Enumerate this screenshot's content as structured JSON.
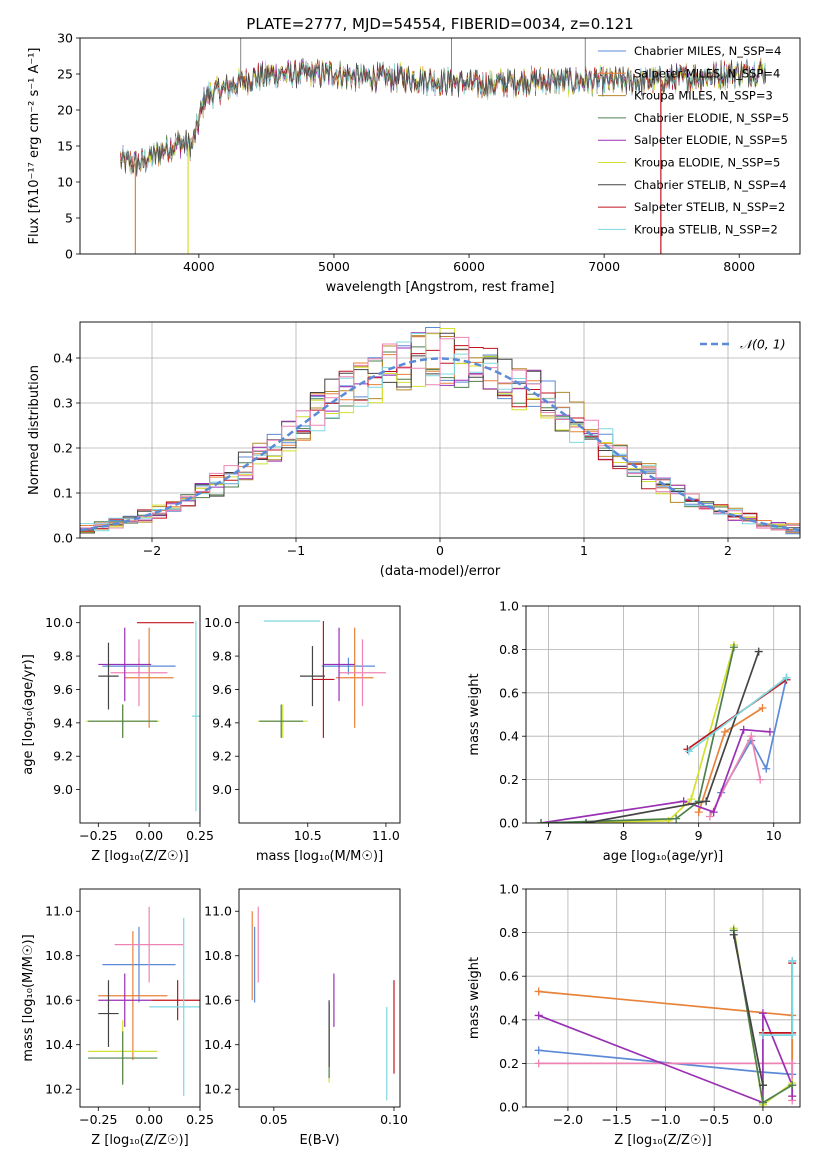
{
  "figure": {
    "title": "PLATE=2777, MJD=54554, FIBERID=0034, z=0.121"
  },
  "chart_data": [
    {
      "id": "spectrum",
      "type": "line",
      "xlabel": "wavelength [Angstrom, rest frame]",
      "ylabel": "Flux [fλ10⁻¹⁷ erg cm⁻² s⁻¹ A⁻¹]",
      "xlim": [
        3120,
        8450
      ],
      "ylim": [
        0,
        30
      ],
      "xticks": [
        4000,
        5000,
        6000,
        7000,
        8000
      ],
      "yticks": [
        0,
        5,
        10,
        15,
        20,
        25,
        30
      ],
      "continuum": {
        "x": [
          3420,
          3550,
          3700,
          3850,
          3950,
          4050,
          4200,
          4400,
          4600,
          4800,
          5000,
          5200,
          5500,
          5800,
          6100,
          6400,
          6700,
          7000,
          7300,
          7600,
          7900,
          8200
        ],
        "y": [
          13,
          12.5,
          14,
          15.5,
          15,
          22,
          23,
          24.5,
          25,
          25,
          25,
          24.5,
          24.5,
          24,
          23.5,
          24,
          24,
          24,
          24,
          24.5,
          25,
          25.5
        ]
      },
      "series": [
        {
          "name": "Chabrier MILES, N_SSP=4",
          "color": "#5b8ad6"
        },
        {
          "name": "Salpeter MILES, N_SSP=4",
          "color": "#e8823a"
        },
        {
          "name": "Kroupa MILES, N_SSP=3",
          "color": "#b5892a"
        },
        {
          "name": "Chabrier ELODIE, N_SSP=5",
          "color": "#4f7f4f"
        },
        {
          "name": "Salpeter ELODIE, N_SSP=5",
          "color": "#9a2fb5"
        },
        {
          "name": "Kroupa ELODIE, N_SSP=5",
          "color": "#d4e030"
        },
        {
          "name": "Chabrier STELIB, N_SSP=4",
          "color": "#444444"
        },
        {
          "name": "Salpeter STELIB, N_SSP=2",
          "color": "#c0141e"
        },
        {
          "name": "Kroupa STELIB, N_SSP=2",
          "color": "#7fd8e0"
        }
      ]
    },
    {
      "id": "residuals",
      "type": "line",
      "xlabel": "(data-model)/error",
      "ylabel": "Normed distribution",
      "xlim": [
        -2.5,
        2.5
      ],
      "ylim": [
        0,
        0.48
      ],
      "xticks": [
        -2,
        -1,
        0,
        1,
        2
      ],
      "yticks": [
        0.0,
        0.1,
        0.2,
        0.3,
        0.4
      ],
      "grid": true,
      "legend": {
        "label": "𝒩(0, 1)",
        "position": "top-right",
        "color": "#5b8ad6"
      }
    },
    {
      "id": "age-vs-Z",
      "type": "scatter",
      "xlabel": "Z [log₁₀(Z/Z☉)]",
      "ylabel": "age  [log₁₀(age/yr)]",
      "xlim": [
        -0.34,
        0.25
      ],
      "ylim": [
        8.8,
        10.1
      ],
      "xticks": [
        -0.25,
        0.0,
        0.25
      ],
      "yticks": [
        9.0,
        9.2,
        9.4,
        9.6,
        9.8,
        10.0
      ],
      "points": [
        {
          "color": "#5b8ad6",
          "x": -0.05,
          "xerr": 0.18,
          "y": 9.74,
          "yerr": 0.05
        },
        {
          "color": "#e8823a",
          "x": 0.0,
          "xerr": 0.12,
          "y": 9.67,
          "yerr": 0.3
        },
        {
          "color": "#ee84b4",
          "x": -0.05,
          "xerr": 0.14,
          "y": 9.7,
          "yerr": 0.2
        },
        {
          "color": "#9a2fb5",
          "x": -0.12,
          "xerr": 0.13,
          "y": 9.75,
          "yerr": 0.22
        },
        {
          "color": "#d4e030",
          "x": -0.13,
          "xerr": 0.18,
          "y": 9.41,
          "yerr": 0.1
        },
        {
          "color": "#4f7f4f",
          "x": -0.13,
          "xerr": 0.17,
          "y": 9.41,
          "yerr": 0.1
        },
        {
          "color": "#444444",
          "x": -0.2,
          "xerr": 0.05,
          "y": 9.68,
          "yerr": 0.2
        },
        {
          "color": "#c0141e",
          "x": 0.08,
          "xerr": 0.14,
          "y": 10.0,
          "yerr": 0.0
        },
        {
          "color": "#7fd8e0",
          "x": 0.23,
          "xerr": 0.02,
          "y": 9.44,
          "yerr": 0.57
        }
      ]
    },
    {
      "id": "age-vs-mass",
      "type": "scatter",
      "xlabel": "mass [log₁₀(M/M☉)]",
      "ylabel": "",
      "xlim": [
        10.06,
        11.09
      ],
      "ylim": [
        8.8,
        10.1
      ],
      "xticks": [
        10.5,
        11.0
      ],
      "yticks": [
        9.0,
        9.2,
        9.4,
        9.6,
        9.8,
        10.0
      ],
      "points": [
        {
          "color": "#5b8ad6",
          "x": 10.76,
          "xerr": 0.17,
          "y": 9.74,
          "yerr": 0.05
        },
        {
          "color": "#e8823a",
          "x": 10.8,
          "xerr": 0.12,
          "y": 9.67,
          "yerr": 0.3
        },
        {
          "color": "#ee84b4",
          "x": 10.85,
          "xerr": 0.15,
          "y": 9.7,
          "yerr": 0.2
        },
        {
          "color": "#9a2fb5",
          "x": 10.7,
          "xerr": 0.1,
          "y": 9.75,
          "yerr": 0.22
        },
        {
          "color": "#d4e030",
          "x": 10.34,
          "xerr": 0.16,
          "y": 9.41,
          "yerr": 0.1
        },
        {
          "color": "#4f7f4f",
          "x": 10.33,
          "xerr": 0.14,
          "y": 9.41,
          "yerr": 0.1
        },
        {
          "color": "#444444",
          "x": 10.53,
          "xerr": 0.08,
          "y": 9.68,
          "yerr": 0.18
        },
        {
          "color": "#c0141e",
          "x": 10.6,
          "xerr": 0.07,
          "y": 9.66,
          "yerr": 0.35
        },
        {
          "color": "#7fd8e0",
          "x": 10.4,
          "xerr": 0.18,
          "y": 10.01,
          "yerr": 0.0
        }
      ]
    },
    {
      "id": "weight-vs-age",
      "type": "line",
      "xlabel": "age  [log₁₀(age/yr)]",
      "ylabel": "mass weight",
      "xlim": [
        6.7,
        10.35
      ],
      "ylim": [
        0,
        1.0
      ],
      "xticks": [
        7,
        8,
        9,
        10
      ],
      "yticks": [
        0.0,
        0.2,
        0.4,
        0.6,
        0.8,
        1.0
      ],
      "grid": true,
      "series": [
        {
          "color": "#5b8ad6",
          "x": [
            9.3,
            9.7,
            9.9,
            10.17
          ],
          "y": [
            0.14,
            0.38,
            0.25,
            0.67
          ]
        },
        {
          "color": "#e8823a",
          "x": [
            9.0,
            9.35,
            9.85
          ],
          "y": [
            0.05,
            0.42,
            0.53
          ]
        },
        {
          "color": "#ee84b4",
          "x": [
            9.15,
            9.7,
            9.82
          ],
          "y": [
            0.03,
            0.4,
            0.2
          ]
        },
        {
          "color": "#9a2fb5",
          "x": [
            6.9,
            8.8,
            9.2,
            9.6,
            9.95
          ],
          "y": [
            0.0,
            0.1,
            0.05,
            0.43,
            0.42
          ]
        },
        {
          "color": "#d4e030",
          "x": [
            6.9,
            8.6,
            8.9,
            9.47
          ],
          "y": [
            0.0,
            0.01,
            0.11,
            0.82
          ]
        },
        {
          "color": "#4f7f4f",
          "x": [
            6.9,
            8.7,
            9.0,
            9.47
          ],
          "y": [
            0.0,
            0.02,
            0.1,
            0.81
          ]
        },
        {
          "color": "#444444",
          "x": [
            7.5,
            9.1,
            9.8
          ],
          "y": [
            0.0,
            0.1,
            0.79
          ]
        },
        {
          "color": "#c0141e",
          "x": [
            8.85,
            10.17
          ],
          "y": [
            0.34,
            0.66
          ]
        },
        {
          "color": "#7fd8e0",
          "x": [
            8.87,
            10.17
          ],
          "y": [
            0.33,
            0.67
          ]
        }
      ]
    },
    {
      "id": "mass-vs-Z",
      "type": "scatter",
      "xlabel": "Z [log₁₀(Z/Z☉)]",
      "ylabel": "mass [log₁₀(M/M☉)]",
      "xlim": [
        -0.34,
        0.25
      ],
      "ylim": [
        10.12,
        11.1
      ],
      "xticks": [
        -0.25,
        0.0,
        0.25
      ],
      "yticks": [
        10.2,
        10.4,
        10.6,
        10.8,
        11.0
      ],
      "points": [
        {
          "color": "#5b8ad6",
          "x": -0.05,
          "xerr": 0.18,
          "y": 10.76,
          "yerr": 0.17
        },
        {
          "color": "#e8823a",
          "x": -0.08,
          "xerr": 0.17,
          "y": 10.62,
          "yerr": 0.29
        },
        {
          "color": "#ee84b4",
          "x": 0.0,
          "xerr": 0.17,
          "y": 10.85,
          "yerr": 0.17
        },
        {
          "color": "#9a2fb5",
          "x": -0.12,
          "xerr": 0.13,
          "y": 10.6,
          "yerr": 0.12
        },
        {
          "color": "#d4e030",
          "x": -0.13,
          "xerr": 0.17,
          "y": 10.37,
          "yerr": 0.14
        },
        {
          "color": "#4f7f4f",
          "x": -0.13,
          "xerr": 0.17,
          "y": 10.34,
          "yerr": 0.12
        },
        {
          "color": "#444444",
          "x": -0.2,
          "xerr": 0.05,
          "y": 10.54,
          "yerr": 0.15
        },
        {
          "color": "#c0141e",
          "x": 0.14,
          "xerr": 0.13,
          "y": 10.6,
          "yerr": 0.09
        },
        {
          "color": "#7fd8e0",
          "x": 0.17,
          "xerr": 0.17,
          "y": 10.57,
          "yerr": 0.4
        }
      ]
    },
    {
      "id": "mass-vs-ebv",
      "type": "scatter",
      "xlabel": "E(B-V)",
      "ylabel": "",
      "xlim": [
        0.0355,
        0.1025
      ],
      "ylim": [
        10.12,
        11.1
      ],
      "xticks": [
        0.05,
        0.1
      ],
      "yticks": [
        10.2,
        10.4,
        10.6,
        10.8,
        11.0
      ],
      "points": [
        {
          "color": "#5b8ad6",
          "x": 0.042,
          "y": 10.76,
          "yerr": 0.17
        },
        {
          "color": "#e8823a",
          "x": 0.041,
          "y": 10.8,
          "yerr": 0.2
        },
        {
          "color": "#ee84b4",
          "x": 0.0435,
          "y": 10.85,
          "yerr": 0.17
        },
        {
          "color": "#9a2fb5",
          "x": 0.075,
          "y": 10.6,
          "yerr": 0.12
        },
        {
          "color": "#d4e030",
          "x": 0.073,
          "y": 10.37,
          "yerr": 0.14
        },
        {
          "color": "#4f7f4f",
          "x": 0.073,
          "y": 10.42,
          "yerr": 0.17
        },
        {
          "color": "#444444",
          "x": 0.073,
          "y": 10.45,
          "yerr": 0.15
        },
        {
          "color": "#c0141e",
          "x": 0.1,
          "y": 10.48,
          "yerr": 0.21
        },
        {
          "color": "#7fd8e0",
          "x": 0.097,
          "y": 10.36,
          "yerr": 0.21
        }
      ]
    },
    {
      "id": "weight-vs-Z",
      "type": "line",
      "xlabel": "Z [log₁₀(Z/Z☉)]",
      "ylabel": "mass weight",
      "xlim": [
        -2.43,
        0.38
      ],
      "ylim": [
        0,
        1.0
      ],
      "xticks": [
        -2.0,
        -1.5,
        -1.0,
        -0.5,
        0.0
      ],
      "yticks": [
        0.0,
        0.2,
        0.4,
        0.6,
        0.8,
        1.0
      ],
      "grid": true,
      "series": [
        {
          "color": "#5b8ad6",
          "x": [
            -2.3,
            0.0,
            0.3,
            0.3
          ],
          "y": [
            0.26,
            0.16,
            0.15,
            0.67
          ]
        },
        {
          "color": "#e8823a",
          "x": [
            -2.3,
            0.3,
            0.3
          ],
          "y": [
            0.53,
            0.42,
            0.05
          ]
        },
        {
          "color": "#ee84b4",
          "x": [
            -2.3,
            0.3,
            0.3
          ],
          "y": [
            0.2,
            0.2,
            0.03
          ]
        },
        {
          "color": "#9a2fb5",
          "x": [
            -2.3,
            0.0,
            0.0,
            0.3,
            0.3
          ],
          "y": [
            0.42,
            0.02,
            0.43,
            0.1,
            0.05
          ]
        },
        {
          "color": "#d4e030",
          "x": [
            -0.3,
            0.0,
            0.3
          ],
          "y": [
            0.82,
            0.01,
            0.11
          ]
        },
        {
          "color": "#4f7f4f",
          "x": [
            -0.3,
            0.0,
            0.3
          ],
          "y": [
            0.81,
            0.02,
            0.1
          ]
        },
        {
          "color": "#444444",
          "x": [
            -0.3,
            0.0,
            0.0
          ],
          "y": [
            0.79,
            0.1,
            0.1
          ]
        },
        {
          "color": "#c0141e",
          "x": [
            0.0,
            0.0,
            0.3,
            0.3
          ],
          "y": [
            0.34,
            0.34,
            0.34,
            0.66
          ]
        },
        {
          "color": "#7fd8e0",
          "x": [
            0.0,
            0.3,
            0.3
          ],
          "y": [
            0.33,
            0.33,
            0.67
          ]
        }
      ]
    }
  ]
}
